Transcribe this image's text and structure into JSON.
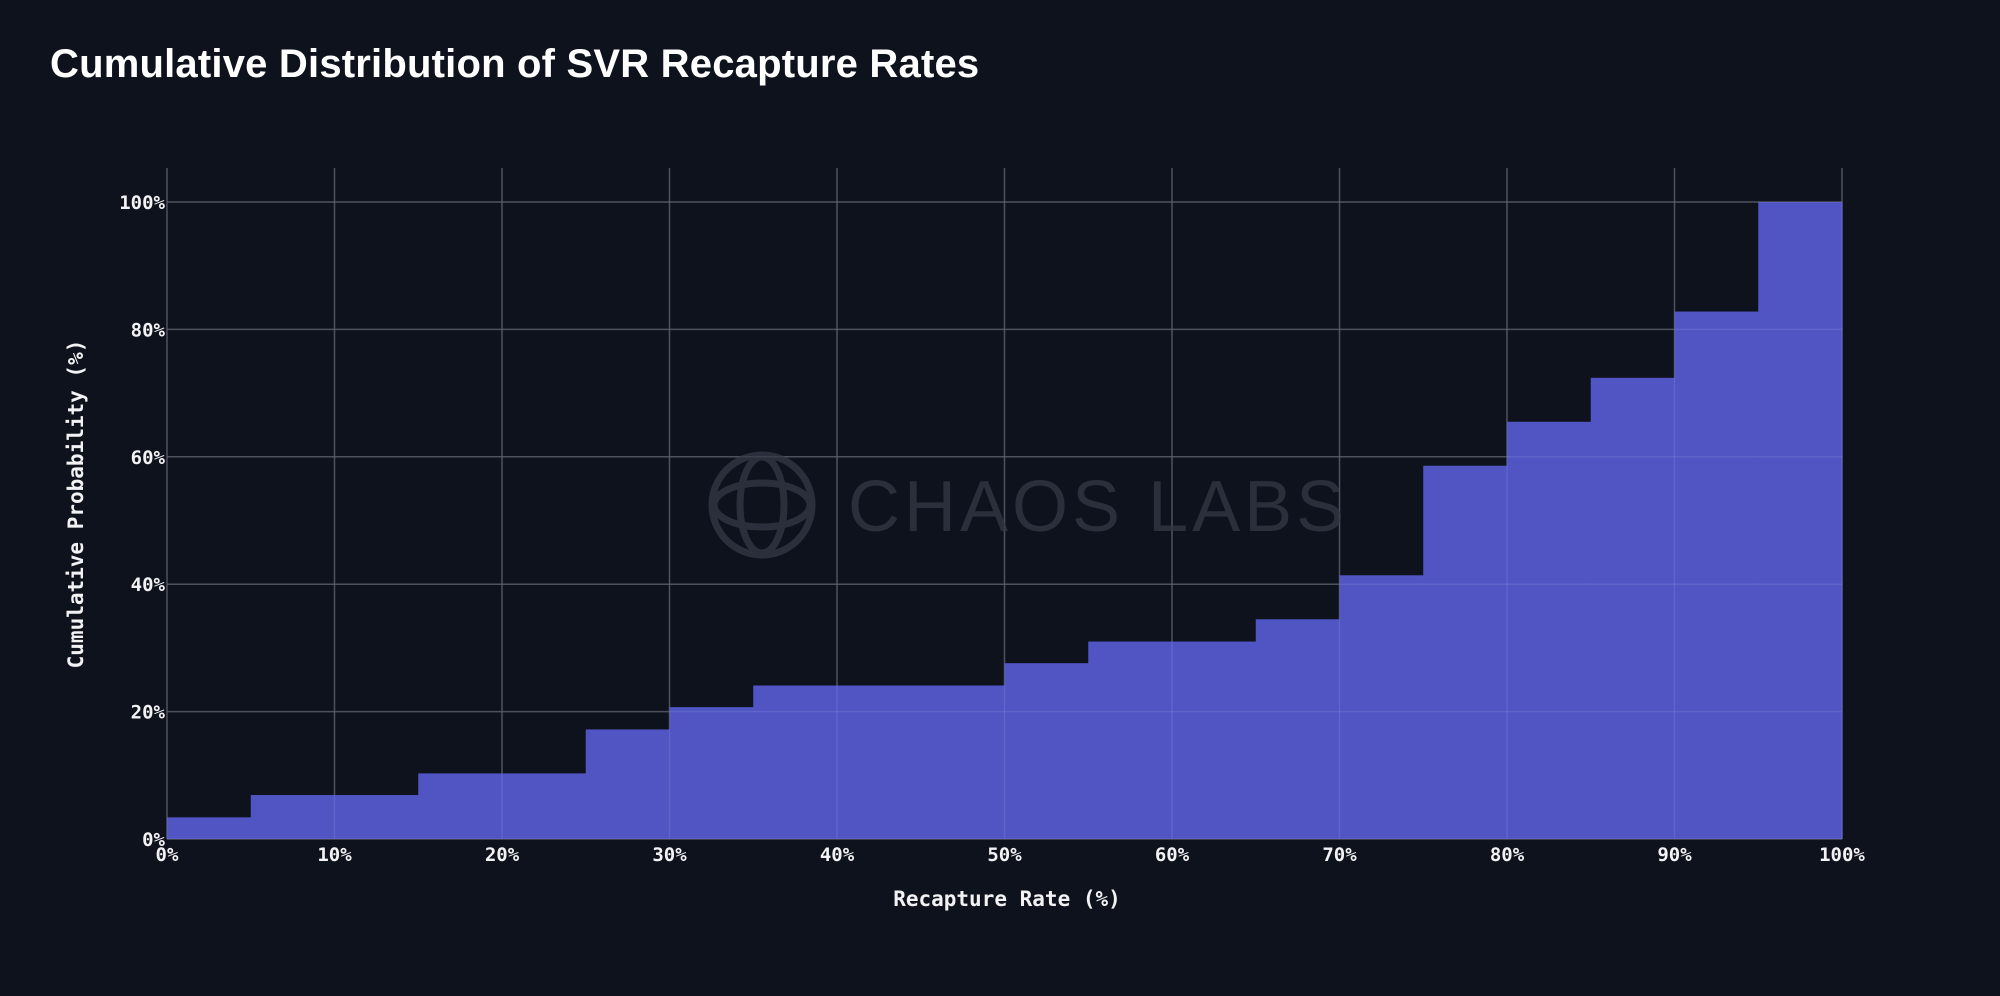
{
  "colors": {
    "background": "#0e121c",
    "bar_fill": "#5358c9",
    "grid": "#3f4350",
    "text": "#f2f2f5"
  },
  "watermark": {
    "text": "CHAOS LABS",
    "icon": "chaos-labs-logo-icon"
  },
  "chart_data": {
    "type": "bar",
    "title": "Cumulative Distribution of SVR Recapture Rates",
    "xlabel": "Recapture Rate (%)",
    "ylabel": "Cumulative Probability (%)",
    "xlim": [
      0,
      100
    ],
    "ylim": [
      0,
      105
    ],
    "grid": true,
    "bin_width": 5,
    "x_ticks": [
      {
        "value": 0,
        "label": "0%"
      },
      {
        "value": 10,
        "label": "10%"
      },
      {
        "value": 20,
        "label": "20%"
      },
      {
        "value": 30,
        "label": "30%"
      },
      {
        "value": 40,
        "label": "40%"
      },
      {
        "value": 50,
        "label": "50%"
      },
      {
        "value": 60,
        "label": "60%"
      },
      {
        "value": 70,
        "label": "70%"
      },
      {
        "value": 80,
        "label": "80%"
      },
      {
        "value": 90,
        "label": "90%"
      },
      {
        "value": 100,
        "label": "100%"
      }
    ],
    "y_ticks": [
      {
        "value": 0,
        "label": "0%"
      },
      {
        "value": 20,
        "label": "20%"
      },
      {
        "value": 40,
        "label": "40%"
      },
      {
        "value": 60,
        "label": "60%"
      },
      {
        "value": 80,
        "label": "80%"
      },
      {
        "value": 100,
        "label": "100%"
      }
    ],
    "bins": [
      {
        "start": 0,
        "end": 5,
        "value": 3.4
      },
      {
        "start": 5,
        "end": 10,
        "value": 6.9
      },
      {
        "start": 10,
        "end": 15,
        "value": 6.9
      },
      {
        "start": 15,
        "end": 20,
        "value": 10.3
      },
      {
        "start": 20,
        "end": 25,
        "value": 10.3
      },
      {
        "start": 25,
        "end": 30,
        "value": 17.2
      },
      {
        "start": 30,
        "end": 35,
        "value": 20.7
      },
      {
        "start": 35,
        "end": 40,
        "value": 24.1
      },
      {
        "start": 40,
        "end": 45,
        "value": 24.1
      },
      {
        "start": 45,
        "end": 50,
        "value": 24.1
      },
      {
        "start": 50,
        "end": 55,
        "value": 27.6
      },
      {
        "start": 55,
        "end": 60,
        "value": 31.0
      },
      {
        "start": 60,
        "end": 65,
        "value": 31.0
      },
      {
        "start": 65,
        "end": 70,
        "value": 34.5
      },
      {
        "start": 70,
        "end": 75,
        "value": 41.4
      },
      {
        "start": 75,
        "end": 80,
        "value": 58.6
      },
      {
        "start": 80,
        "end": 85,
        "value": 65.5
      },
      {
        "start": 85,
        "end": 90,
        "value": 72.4
      },
      {
        "start": 90,
        "end": 95,
        "value": 82.8
      },
      {
        "start": 95,
        "end": 100,
        "value": 100.0
      }
    ]
  }
}
